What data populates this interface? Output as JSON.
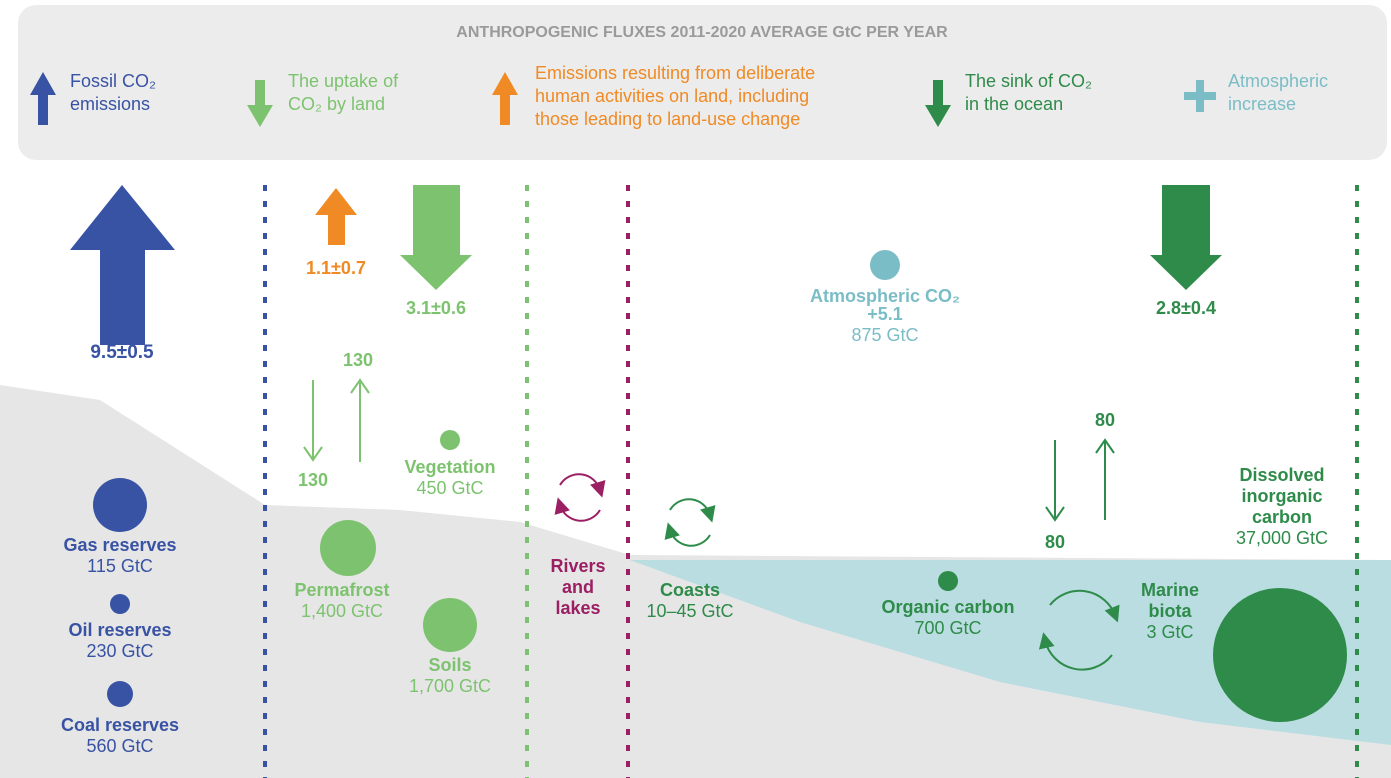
{
  "header": {
    "title": "ANTHROPOGENIC FLUXES 2011-2020 AVERAGE GtC PER YEAR",
    "legend": [
      {
        "lines": [
          "Fossil CO₂",
          "emissions"
        ]
      },
      {
        "lines": [
          "The uptake of",
          "CO₂ by land"
        ]
      },
      {
        "lines": [
          "Emissions resulting from deliberate",
          "human activities on land, including",
          "those leading to land-use change"
        ]
      },
      {
        "lines": [
          "The sink of CO₂",
          "in the ocean"
        ]
      },
      {
        "lines": [
          "Atmospheric",
          "increase"
        ]
      }
    ]
  },
  "fluxes": {
    "fossil": "9.5±0.5",
    "land_use": "1.1±0.7",
    "land_uptake": "3.1±0.6",
    "ocean_sink": "2.8±0.4"
  },
  "atmosphere": {
    "lines": [
      "Atmospheric CO₂",
      "+5.1"
    ],
    "amount": "875 GtC"
  },
  "exchanges": {
    "land_up": "130",
    "land_down": "130",
    "ocean_up": "80",
    "ocean_down": "80"
  },
  "reservoirs": [
    {
      "name": [
        "Gas reserves"
      ],
      "amount": "115 GtC"
    },
    {
      "name": [
        "Oil reserves"
      ],
      "amount": "230 GtC"
    },
    {
      "name": [
        "Coal reserves"
      ],
      "amount": "560 GtC"
    },
    {
      "name": [
        "Vegetation"
      ],
      "amount": "450 GtC"
    },
    {
      "name": [
        "Permafrost"
      ],
      "amount": "1,400 GtC"
    },
    {
      "name": [
        "Soils"
      ],
      "amount": "1,700 GtC"
    },
    {
      "name": [
        "Rivers",
        "and",
        "lakes"
      ]
    },
    {
      "name": [
        "Coasts"
      ],
      "amount": "10–45 GtC"
    },
    {
      "name": [
        "Organic carbon"
      ],
      "amount": "700 GtC"
    },
    {
      "name": [
        "Marine",
        "biota"
      ],
      "amount": "3 GtC"
    },
    {
      "name": [
        "Dissolved",
        "inorganic",
        "carbon"
      ],
      "amount": "37,000 GtC"
    }
  ]
}
